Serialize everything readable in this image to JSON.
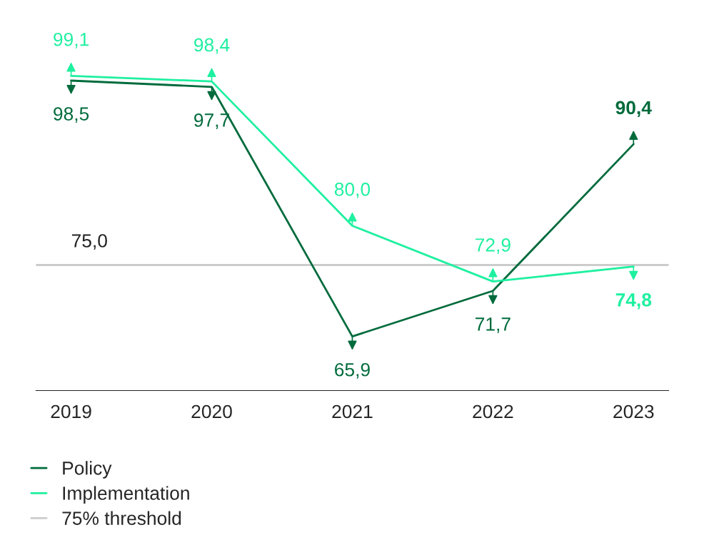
{
  "chart_data": {
    "type": "line",
    "categories": [
      "2019",
      "2020",
      "2021",
      "2022",
      "2023"
    ],
    "series": [
      {
        "name": "Policy",
        "color": "#006b3c",
        "values": [
          98.5,
          97.7,
          65.9,
          71.7,
          90.4
        ],
        "value_labels": [
          "98,5",
          "97,7",
          "65,9",
          "71,7",
          "90,4"
        ]
      },
      {
        "name": "Implementation",
        "color": "#1ff0a0",
        "values": [
          99.1,
          98.4,
          80.0,
          72.9,
          74.8
        ],
        "value_labels": [
          "99,1",
          "98,4",
          "80,0",
          "72,9",
          "74,8"
        ]
      }
    ],
    "ref_lines": [
      {
        "axis": "y",
        "value": 75,
        "label": "75% threshold",
        "color": "#cccccc"
      }
    ],
    "annotations": [
      {
        "text": "75,0",
        "x": "2019",
        "y": 75
      }
    ],
    "legend": "bottom left",
    "grid": false,
    "marker": "none"
  }
}
